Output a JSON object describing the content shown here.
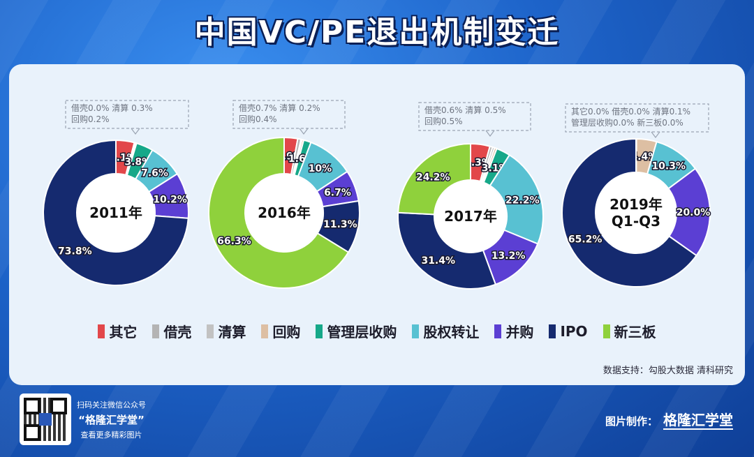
{
  "title": "中国VC/PE退出机制变迁",
  "colors": {
    "其它": "#e2474a",
    "借壳": "#b4b4b4",
    "清算": "#c2c2c2",
    "回购": "#ddbfa3",
    "管理层收购": "#16a889",
    "股权转让": "#58c1d2",
    "并购": "#5b3fd3",
    "IPO": "#152a6f",
    "新三板": "#8fd13c"
  },
  "legend": [
    "其它",
    "借壳",
    "清算",
    "回购",
    "管理层收购",
    "股权转让",
    "并购",
    "IPO",
    "新三板"
  ],
  "chart_data": [
    {
      "type": "pie",
      "title": "2011年",
      "categories": [
        "其它",
        "借壳",
        "清算",
        "回购",
        "管理层收购",
        "股权转让",
        "并购",
        "IPO",
        "新三板"
      ],
      "values": [
        4.1,
        0.0,
        0.3,
        0.2,
        3.8,
        7.6,
        10.2,
        73.8,
        0
      ],
      "labels": [
        "4.1%",
        "",
        "",
        "",
        "3.8%",
        "7.6%",
        "10.2%",
        "73.8%",
        ""
      ],
      "note_lines": [
        "借壳0.0% 清算 0.3%",
        "回购0.2%"
      ]
    },
    {
      "type": "pie",
      "title": "2016年",
      "categories": [
        "其它",
        "借壳",
        "清算",
        "回购",
        "管理层收购",
        "股权转让",
        "并购",
        "IPO",
        "新三板"
      ],
      "values": [
        2.9,
        0.7,
        0.2,
        0.4,
        1.6,
        10,
        6.7,
        11.3,
        66.3
      ],
      "labels": [
        "2.9%",
        "",
        "",
        "",
        "1.6%",
        "10%",
        "6.7%",
        "11.3%",
        "66.3%"
      ],
      "note_lines": [
        "借壳0.7% 清算 0.2%",
        "回购0.4%"
      ]
    },
    {
      "type": "pie",
      "title": "2017年",
      "categories": [
        "其它",
        "借壳",
        "清算",
        "回购",
        "管理层收购",
        "股权转让",
        "并购",
        "IPO",
        "新三板"
      ],
      "values": [
        4.3,
        0.6,
        0.5,
        0.5,
        3.1,
        22.2,
        13.2,
        31.4,
        24.2
      ],
      "labels": [
        "4.3%",
        "",
        "",
        "",
        "3.1%",
        "22.2%",
        "13.2%",
        "31.4%",
        "24.2%"
      ],
      "note_lines": [
        "借壳0.6% 清算 0.5%",
        "回购0.5%"
      ]
    },
    {
      "type": "pie",
      "title": "2019年 Q1-Q3",
      "categories": [
        "其它",
        "借壳",
        "清算",
        "回购",
        "管理层收购",
        "股权转让",
        "并购",
        "IPO",
        "新三板"
      ],
      "values": [
        0.0,
        0.0,
        0.1,
        4.4,
        0.0,
        10.3,
        20.0,
        65.2,
        0.0
      ],
      "labels": [
        "",
        "",
        "",
        "4.4%",
        "",
        "10.3%",
        "20.0%",
        "65.2%",
        ""
      ],
      "note_lines": [
        "其它0.0% 借壳0.0% 清算0.1%",
        "管理层收购0.0% 新三板0.0%"
      ]
    }
  ],
  "source": "数据支持：勾股大数据 清科研究",
  "footer": {
    "scan_text": "扫码关注微信公众号",
    "account_name": "“格隆汇学堂”",
    "more_text": "查看更多精彩图片",
    "credit_label": "图片制作：",
    "brand": "格隆汇学堂"
  }
}
